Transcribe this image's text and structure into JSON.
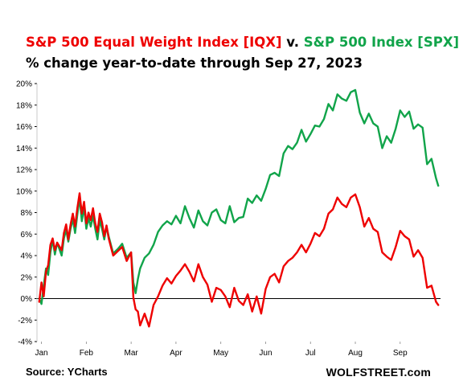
{
  "title": {
    "part1": "S&P 500 Equal Weight Index [IQX]",
    "part2": " v. ",
    "part3": "S&P 500 Index [SPX]",
    "subtitle": "% change year-to-date through Sep 27, 2023"
  },
  "source": "Source: YCharts",
  "brand": "WOLFSTREET.com",
  "colors": {
    "iqx": "#ee0000",
    "spx": "#11a44a",
    "axis": "#000000",
    "grid": "#d9d9d9"
  },
  "chart_data": {
    "type": "line",
    "ylim": [
      -4,
      20
    ],
    "ytick_labels": [
      "-4%",
      "-2%",
      "0%",
      "2%",
      "4%",
      "6%",
      "8%",
      "10%",
      "12%",
      "14%",
      "16%",
      "18%",
      "20%"
    ],
    "ytick_values": [
      -4,
      -2,
      0,
      2,
      4,
      6,
      8,
      10,
      12,
      14,
      16,
      18,
      20
    ],
    "xtick_labels": [
      "Jan",
      "Feb",
      "Mar",
      "Apr",
      "May",
      "Jun",
      "Jul",
      "Aug",
      "Sep"
    ],
    "xtick_values": [
      0,
      1,
      2,
      3,
      4,
      5,
      6,
      7,
      8
    ],
    "xlim": [
      -0.1,
      8.9
    ],
    "grid": false,
    "series": [
      {
        "key": "spx",
        "x": [
          -0.05,
          0.0,
          0.05,
          0.1,
          0.15,
          0.2,
          0.25,
          0.3,
          0.35,
          0.45,
          0.5,
          0.55,
          0.6,
          0.65,
          0.7,
          0.75,
          0.8,
          0.85,
          0.9,
          0.95,
          1.0,
          1.05,
          1.1,
          1.15,
          1.2,
          1.25,
          1.3,
          1.35,
          1.4,
          1.45,
          1.5,
          1.6,
          1.7,
          1.8,
          1.9,
          2.0,
          2.05,
          2.1,
          2.15,
          2.2,
          2.3,
          2.4,
          2.5,
          2.6,
          2.7,
          2.8,
          2.9,
          3.0,
          3.1,
          3.2,
          3.3,
          3.4,
          3.5,
          3.6,
          3.7,
          3.8,
          3.9,
          4.0,
          4.1,
          4.2,
          4.3,
          4.4,
          4.5,
          4.6,
          4.7,
          4.8,
          4.9,
          5.0,
          5.1,
          5.2,
          5.3,
          5.4,
          5.5,
          5.6,
          5.7,
          5.8,
          5.9,
          6.0,
          6.1,
          6.2,
          6.3,
          6.4,
          6.5,
          6.6,
          6.7,
          6.8,
          6.9,
          7.0,
          7.1,
          7.2,
          7.3,
          7.4,
          7.5,
          7.6,
          7.7,
          7.8,
          7.9,
          8.0,
          8.1,
          8.2,
          8.3,
          8.4,
          8.5,
          8.6,
          8.7,
          8.8,
          8.85
        ],
        "y": [
          0.0,
          -0.5,
          1.2,
          2.8,
          2.2,
          4.3,
          5.5,
          4.1,
          5.2,
          4.0,
          5.6,
          6.4,
          5.3,
          6.5,
          7.4,
          6.1,
          7.8,
          9.4,
          7.2,
          8.5,
          6.5,
          7.5,
          6.7,
          7.7,
          6.5,
          5.5,
          7.3,
          6.5,
          5.5,
          6.7,
          5.8,
          4.2,
          4.6,
          5.1,
          3.8,
          4.3,
          1.5,
          0.5,
          1.8,
          2.8,
          3.8,
          4.2,
          5.0,
          6.2,
          6.8,
          7.2,
          6.9,
          7.7,
          7.0,
          8.6,
          7.5,
          6.6,
          8.2,
          7.2,
          6.8,
          8.0,
          8.3,
          7.3,
          7.0,
          8.6,
          7.1,
          7.5,
          7.6,
          9.3,
          8.9,
          9.6,
          9.1,
          10.2,
          11.5,
          11.7,
          11.4,
          13.5,
          14.2,
          13.9,
          14.5,
          15.7,
          14.6,
          15.3,
          16.1,
          16.0,
          16.7,
          18.1,
          17.5,
          19.0,
          18.6,
          18.4,
          19.2,
          19.4,
          17.3,
          16.3,
          17.2,
          16.3,
          16.0,
          14.0,
          15.1,
          14.5,
          15.8,
          17.5,
          16.9,
          17.4,
          15.8,
          16.2,
          15.9,
          12.5,
          13.0,
          11.2,
          10.5
        ]
      },
      {
        "key": "iqx",
        "x": [
          -0.05,
          0.0,
          0.05,
          0.1,
          0.15,
          0.2,
          0.25,
          0.3,
          0.35,
          0.45,
          0.5,
          0.55,
          0.6,
          0.65,
          0.7,
          0.75,
          0.8,
          0.85,
          0.9,
          0.95,
          1.0,
          1.05,
          1.1,
          1.15,
          1.2,
          1.25,
          1.3,
          1.35,
          1.4,
          1.45,
          1.5,
          1.6,
          1.7,
          1.8,
          1.9,
          2.0,
          2.05,
          2.1,
          2.15,
          2.2,
          2.3,
          2.4,
          2.5,
          2.6,
          2.7,
          2.8,
          2.9,
          3.0,
          3.1,
          3.2,
          3.3,
          3.4,
          3.5,
          3.6,
          3.7,
          3.8,
          3.9,
          4.0,
          4.1,
          4.2,
          4.3,
          4.4,
          4.5,
          4.6,
          4.7,
          4.8,
          4.9,
          5.0,
          5.1,
          5.2,
          5.3,
          5.4,
          5.5,
          5.6,
          5.7,
          5.8,
          5.9,
          6.0,
          6.1,
          6.2,
          6.3,
          6.4,
          6.5,
          6.6,
          6.7,
          6.8,
          6.9,
          7.0,
          7.1,
          7.2,
          7.3,
          7.4,
          7.5,
          7.6,
          7.7,
          7.8,
          7.9,
          8.0,
          8.1,
          8.2,
          8.3,
          8.4,
          8.5,
          8.6,
          8.7,
          8.8,
          8.85
        ],
        "y": [
          -0.3,
          1.5,
          0.2,
          2.5,
          3.1,
          5.0,
          5.6,
          4.5,
          5.2,
          4.5,
          6.1,
          6.9,
          5.5,
          6.9,
          7.9,
          6.7,
          8.4,
          9.8,
          7.9,
          9.0,
          7.0,
          8.0,
          7.3,
          8.4,
          7.0,
          6.2,
          7.9,
          7.1,
          5.8,
          6.8,
          5.6,
          4.0,
          4.4,
          4.8,
          3.5,
          4.3,
          0.1,
          -1.0,
          -1.2,
          -2.5,
          -1.4,
          -2.6,
          -0.6,
          0.2,
          1.2,
          1.9,
          1.4,
          2.1,
          2.6,
          3.2,
          2.5,
          1.6,
          3.2,
          2.0,
          1.3,
          -0.3,
          1.0,
          0.8,
          0.2,
          -0.8,
          1.0,
          -0.2,
          -0.6,
          0.4,
          -1.2,
          0.2,
          -1.4,
          0.9,
          2.0,
          2.3,
          1.5,
          3.0,
          3.5,
          3.8,
          4.3,
          5.0,
          4.3,
          5.1,
          6.1,
          5.8,
          6.5,
          7.9,
          8.3,
          9.4,
          8.8,
          8.5,
          9.4,
          9.7,
          8.5,
          6.7,
          7.5,
          6.5,
          6.2,
          4.3,
          3.9,
          3.6,
          4.8,
          6.3,
          5.8,
          5.5,
          3.9,
          4.5,
          3.8,
          1.0,
          1.2,
          -0.3,
          -0.6
        ]
      }
    ]
  }
}
